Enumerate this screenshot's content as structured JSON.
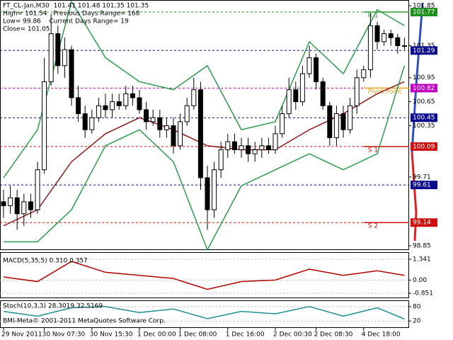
{
  "chart_data": {
    "type": "candlestick",
    "header": [
      "FT_CL-Jan,M30  101.41 101.48 101.35 101.35",
      "High= 101.54   Previous Days Range= 168",
      "Low= 99.86    Current Days Range= 19",
      "Close= 101.05"
    ],
    "ylim": [
      98.85,
      101.85
    ],
    "yticks": [
      101.85,
      101.35,
      100.95,
      100.65,
      100.35,
      99.71,
      98.85
    ],
    "open": [
      99.4,
      99.35,
      99.45,
      99.25,
      99.4,
      99.3,
      99.8,
      100.9,
      101.5,
      101.1,
      101.3,
      100.7,
      100.5,
      100.3,
      100.45,
      100.6,
      100.55,
      100.65,
      100.6,
      100.75,
      100.7,
      100.55,
      100.4,
      100.45,
      100.3,
      100.35,
      100.1,
      100.4,
      100.6,
      100.8,
      99.7,
      99.3,
      99.8,
      100.05,
      100.15,
      100.05,
      100.1,
      100.0,
      100.05,
      100.1,
      100.05,
      100.25,
      100.5,
      100.8,
      100.65,
      101.0,
      101.2,
      100.9,
      100.6,
      100.2,
      100.5,
      100.3,
      100.6,
      100.95,
      101.05,
      101.6,
      101.4,
      101.5,
      101.45,
      101.35
    ],
    "high": [
      99.55,
      99.6,
      99.55,
      99.5,
      99.5,
      99.9,
      101.2,
      101.75,
      101.6,
      101.45,
      101.35,
      100.85,
      100.6,
      100.55,
      100.7,
      100.75,
      100.75,
      100.75,
      100.85,
      100.85,
      100.8,
      100.65,
      100.55,
      100.55,
      100.45,
      100.45,
      100.5,
      100.7,
      100.95,
      100.9,
      99.85,
      99.9,
      100.15,
      100.25,
      100.25,
      100.2,
      100.2,
      100.15,
      100.2,
      100.2,
      100.35,
      100.6,
      100.95,
      100.9,
      101.1,
      101.35,
      101.25,
      100.95,
      100.65,
      100.6,
      100.6,
      100.7,
      101.05,
      101.1,
      101.75,
      101.65,
      101.55,
      101.55,
      101.5,
      101.45
    ],
    "low": [
      99.2,
      99.25,
      99.05,
      99.1,
      99.2,
      99.25,
      99.75,
      100.85,
      101.0,
      100.95,
      100.6,
      100.4,
      100.2,
      100.25,
      100.4,
      100.45,
      100.45,
      100.55,
      100.55,
      100.6,
      100.5,
      100.3,
      100.35,
      100.2,
      100.2,
      100.0,
      100.05,
      100.35,
      100.55,
      99.55,
      99.05,
      99.2,
      99.7,
      99.95,
      100.0,
      99.95,
      99.9,
      99.9,
      99.95,
      100.0,
      100.0,
      100.2,
      100.45,
      100.55,
      100.6,
      100.95,
      100.8,
      100.55,
      100.1,
      100.1,
      100.2,
      100.25,
      100.5,
      100.9,
      100.95,
      101.3,
      101.35,
      101.35,
      101.25,
      101.3
    ],
    "close": [
      99.35,
      99.45,
      99.25,
      99.4,
      99.3,
      99.8,
      100.9,
      101.5,
      101.1,
      101.3,
      100.7,
      100.5,
      100.3,
      100.45,
      100.6,
      100.55,
      100.65,
      100.6,
      100.75,
      100.7,
      100.55,
      100.4,
      100.45,
      100.3,
      100.35,
      100.1,
      100.4,
      100.6,
      100.8,
      99.7,
      99.3,
      99.8,
      100.05,
      100.15,
      100.05,
      100.1,
      100.0,
      100.05,
      100.1,
      100.05,
      100.25,
      100.5,
      100.8,
      100.65,
      101.0,
      101.2,
      100.9,
      100.6,
      100.2,
      100.5,
      100.3,
      100.6,
      100.95,
      101.05,
      101.6,
      101.4,
      101.5,
      101.45,
      101.35,
      101.35
    ],
    "xticks": [
      {
        "value": 0,
        "label": "29 Nov 2011"
      },
      {
        "value": 6,
        "label": "30 Nov 07:30"
      },
      {
        "value": 13,
        "label": "30 Nov 15:30"
      },
      {
        "value": 20,
        "label": "1 Dec 00:00"
      },
      {
        "value": 26,
        "label": "1 Dec 08:00"
      },
      {
        "value": 33,
        "label": "1 Dec 16:00"
      },
      {
        "value": 40,
        "label": "2 Dec 00:30"
      },
      {
        "value": 46,
        "label": "2 Dec 08:30"
      },
      {
        "value": 53,
        "label": "4 Dec 18:00"
      }
    ],
    "overlays": [
      {
        "color": "#8b1a1a",
        "x": [
          0,
          5,
          10,
          15,
          20,
          25,
          30,
          35,
          40,
          45,
          50,
          55,
          59
        ],
        "values": [
          99.1,
          99.3,
          99.9,
          100.25,
          100.45,
          100.3,
          100.1,
          100.05,
          100.05,
          100.3,
          100.5,
          100.75,
          100.9
        ]
      },
      {
        "color": "#2e9a4e",
        "x": [
          0,
          5,
          10,
          15,
          20,
          25,
          30,
          35,
          40,
          45,
          50,
          55,
          59
        ],
        "values": [
          99.7,
          100.3,
          101.9,
          101.2,
          100.9,
          100.8,
          101.1,
          100.3,
          100.4,
          101.4,
          101.0,
          101.8,
          101.6
        ]
      },
      {
        "color": "#2e9a4e",
        "x": [
          0,
          5,
          10,
          15,
          20,
          25,
          30,
          35,
          40,
          45,
          50,
          55,
          59
        ],
        "values": [
          98.9,
          98.9,
          99.3,
          100.1,
          100.3,
          99.9,
          98.8,
          99.6,
          99.8,
          100.0,
          99.8,
          100.0,
          101.1
        ]
      }
    ],
    "pivot_lines": [
      {
        "label": "R 1",
        "value": 101.77,
        "color": "#2e9a2e"
      },
      {
        "label": "Pivot Point",
        "value": 100.82,
        "color": "#e8a020"
      },
      {
        "label": "S 1",
        "value": 100.09,
        "color": "#cc1010"
      },
      {
        "label": "S 2",
        "value": 99.14,
        "color": "#cc1010"
      }
    ],
    "pivot_start": 53,
    "levels": [
      {
        "value": 101.77,
        "color": "#1f8f1f"
      },
      {
        "value": 101.29,
        "color": "#0a0a8a"
      },
      {
        "value": 100.82,
        "color": "#c000c0"
      },
      {
        "value": 100.45,
        "color": "#0a0a8a"
      },
      {
        "value": 100.09,
        "color": "#cc1010"
      },
      {
        "value": 99.61,
        "color": "#0a0a8a"
      },
      {
        "value": 99.14,
        "color": "#cc1010"
      }
    ],
    "macd": {
      "title": "MACD(5,35,5) 0.310 0.357",
      "ylim": [
        -0.851,
        1.341
      ],
      "yticks": [
        1.341,
        {
          "value": 0,
          "label": "0.00"
        },
        -0.851
      ],
      "color": "#b00000",
      "x": [
        0,
        5,
        10,
        15,
        20,
        25,
        30,
        35,
        40,
        45,
        50,
        55,
        59
      ],
      "values": [
        0.2,
        -0.1,
        1.2,
        0.5,
        0.3,
        0.1,
        -0.6,
        -0.1,
        0,
        0.7,
        0.3,
        0.6,
        0.3
      ]
    },
    "stoch": {
      "title": "Stoch(10,3,3) 28.3019 32.5169",
      "ylim": [
        0,
        100
      ],
      "yticks": [
        80,
        20
      ],
      "color": "#1f8f8f",
      "x": [
        0,
        5,
        10,
        15,
        20,
        25,
        30,
        35,
        40,
        45,
        50,
        55,
        59
      ],
      "values": [
        60,
        40,
        75,
        80,
        55,
        70,
        30,
        60,
        50,
        80,
        40,
        75,
        28.3019
      ]
    },
    "copyright": "BMI-Meta© 2001-2011 MetaQuotes Software Corp."
  }
}
